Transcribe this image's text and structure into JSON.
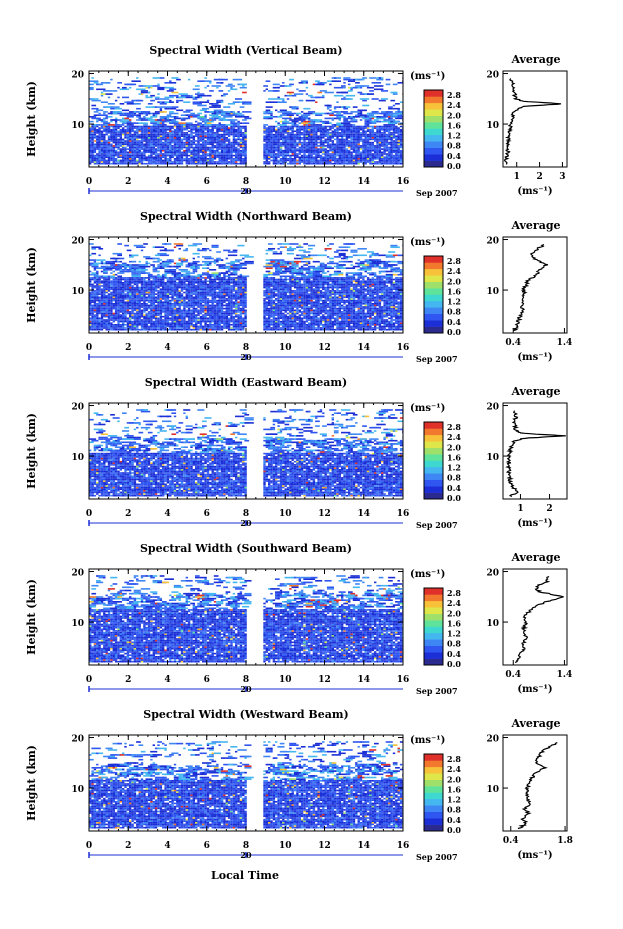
{
  "figure": {
    "xlabel": "Local Time",
    "date_label": "Sep 2007",
    "day_marker": "20",
    "ylabel": "Height (km)",
    "cbar_unit": "(ms⁻¹)",
    "avg_title": "Average",
    "avg_unit": "(ms⁻¹)",
    "cbar_ticks": [
      "0.0",
      "0.4",
      "0.8",
      "1.2",
      "1.6",
      "2.0",
      "2.4",
      "2.8"
    ],
    "colors": [
      "#2b2b8f",
      "#1c2fd6",
      "#2f56f0",
      "#3f86f5",
      "#44b6f0",
      "#3fd8d0",
      "#5fe39a",
      "#9fe06a",
      "#dfe64a",
      "#f7c23a",
      "#f2782e",
      "#e0302a"
    ],
    "gap_color": "#ffffff"
  },
  "chart_data": [
    {
      "type": "heatmap",
      "title": "Spectral Width (Vertical Beam)",
      "xlabel": "",
      "ylabel": "Height (km)",
      "xticks": [
        "0",
        "2",
        "4",
        "6",
        "8",
        "10",
        "12",
        "14",
        "16"
      ],
      "yticks": [
        "10",
        "20"
      ],
      "xlim": [
        0,
        16
      ],
      "ylim": [
        1.5,
        20.5
      ],
      "data_gap": [
        8.05,
        8.85
      ],
      "dense_top_km": 9.5,
      "sparse_top_km": 19,
      "color_range": [
        0,
        3.0
      ],
      "avg_profile": {
        "xticks": [
          "1",
          "2",
          "3"
        ],
        "xlim": [
          0.4,
          3.2
        ],
        "heights_km": [
          2,
          3,
          4,
          5,
          6,
          7,
          8,
          9,
          10,
          11,
          12,
          13,
          13.5,
          14,
          14.5,
          15,
          16,
          17,
          18,
          19
        ],
        "values": [
          0.55,
          0.55,
          0.6,
          0.6,
          0.62,
          0.62,
          0.65,
          0.7,
          0.75,
          0.8,
          0.85,
          1.0,
          1.3,
          3.0,
          1.3,
          0.95,
          0.9,
          0.85,
          0.8,
          0.75
        ]
      }
    },
    {
      "type": "heatmap",
      "title": "Spectral Width (Northward Beam)",
      "xlabel": "",
      "ylabel": "Height (km)",
      "xticks": [
        "0",
        "2",
        "4",
        "6",
        "8",
        "10",
        "12",
        "14",
        "16"
      ],
      "yticks": [
        "10",
        "20"
      ],
      "xlim": [
        0,
        16
      ],
      "ylim": [
        1.5,
        20.5
      ],
      "data_gap": [
        8.05,
        8.85
      ],
      "dense_top_km": 12.5,
      "sparse_top_km": 19,
      "color_range": [
        0,
        3.0
      ],
      "avg_profile": {
        "xticks": [
          "0.4",
          "1.4"
        ],
        "xlim": [
          0.2,
          1.45
        ],
        "heights_km": [
          2,
          3,
          4,
          5,
          6,
          7,
          8,
          9,
          10,
          11,
          12,
          13,
          14,
          15,
          16,
          17,
          18,
          19
        ],
        "values": [
          0.42,
          0.48,
          0.5,
          0.55,
          0.58,
          0.55,
          0.6,
          0.62,
          0.6,
          0.65,
          0.7,
          0.85,
          0.9,
          1.05,
          0.85,
          0.75,
          0.85,
          1.0
        ]
      }
    },
    {
      "type": "heatmap",
      "title": "Spectral Width (Eastward Beam)",
      "xlabel": "",
      "ylabel": "Height (km)",
      "xticks": [
        "0",
        "2",
        "4",
        "6",
        "8",
        "10",
        "12",
        "14",
        "16"
      ],
      "yticks": [
        "10",
        "20"
      ],
      "xlim": [
        0,
        16
      ],
      "ylim": [
        1.5,
        20.5
      ],
      "data_gap": [
        8.05,
        8.85
      ],
      "dense_top_km": 10.5,
      "sparse_top_km": 19,
      "color_range": [
        0,
        3.0
      ],
      "avg_profile": {
        "xticks": [
          "1",
          "2"
        ],
        "xlim": [
          0.4,
          2.6
        ],
        "heights_km": [
          2,
          3,
          4,
          5,
          6,
          7,
          8,
          9,
          10,
          11,
          12,
          13,
          13.5,
          14,
          14.5,
          15,
          16,
          17,
          18,
          19
        ],
        "values": [
          0.65,
          0.9,
          0.7,
          0.65,
          0.62,
          0.6,
          0.6,
          0.62,
          0.62,
          0.65,
          0.7,
          0.8,
          1.1,
          2.5,
          1.1,
          0.85,
          0.8,
          0.8,
          0.85,
          0.8
        ]
      }
    },
    {
      "type": "heatmap",
      "title": "Spectral Width (Southward Beam)",
      "xlabel": "",
      "ylabel": "Height (km)",
      "xticks": [
        "0",
        "2",
        "4",
        "6",
        "8",
        "10",
        "12",
        "14",
        "16"
      ],
      "yticks": [
        "10",
        "20"
      ],
      "xlim": [
        0,
        16
      ],
      "ylim": [
        1.5,
        20.5
      ],
      "data_gap": [
        8.05,
        8.85
      ],
      "dense_top_km": 12.5,
      "sparse_top_km": 19,
      "color_range": [
        0,
        3.0
      ],
      "avg_profile": {
        "xticks": [
          "0.4",
          "1.4"
        ],
        "xlim": [
          0.2,
          1.45
        ],
        "heights_km": [
          2,
          3,
          4,
          5,
          6,
          7,
          8,
          9,
          10,
          11,
          12,
          13,
          14,
          15,
          16,
          17,
          18,
          19
        ],
        "values": [
          0.45,
          0.5,
          0.55,
          0.62,
          0.6,
          0.65,
          0.6,
          0.62,
          0.65,
          0.62,
          0.7,
          0.8,
          1.05,
          1.4,
          0.9,
          0.85,
          1.05,
          1.1
        ]
      }
    },
    {
      "type": "heatmap",
      "title": "Spectral Width (Westward Beam)",
      "xlabel": "Local Time",
      "ylabel": "Height (km)",
      "xticks": [
        "0",
        "2",
        "4",
        "6",
        "8",
        "10",
        "12",
        "14",
        "16"
      ],
      "yticks": [
        "10",
        "20"
      ],
      "xlim": [
        0,
        16
      ],
      "ylim": [
        1.5,
        20.5
      ],
      "data_gap": [
        8.05,
        8.85
      ],
      "dense_top_km": 11.5,
      "sparse_top_km": 19,
      "color_range": [
        0,
        3.0
      ],
      "avg_profile": {
        "xticks": [
          "0.4",
          "1.8"
        ],
        "xlim": [
          0.2,
          1.85
        ],
        "heights_km": [
          2,
          3,
          4,
          5,
          6,
          7,
          8,
          9,
          10,
          11,
          12,
          13,
          14,
          15,
          16,
          17,
          18,
          19
        ],
        "values": [
          0.6,
          0.8,
          0.7,
          0.85,
          0.75,
          0.9,
          0.8,
          0.85,
          0.8,
          0.9,
          0.95,
          1.0,
          1.3,
          1.05,
          1.1,
          1.2,
          1.35,
          1.6
        ]
      }
    }
  ]
}
